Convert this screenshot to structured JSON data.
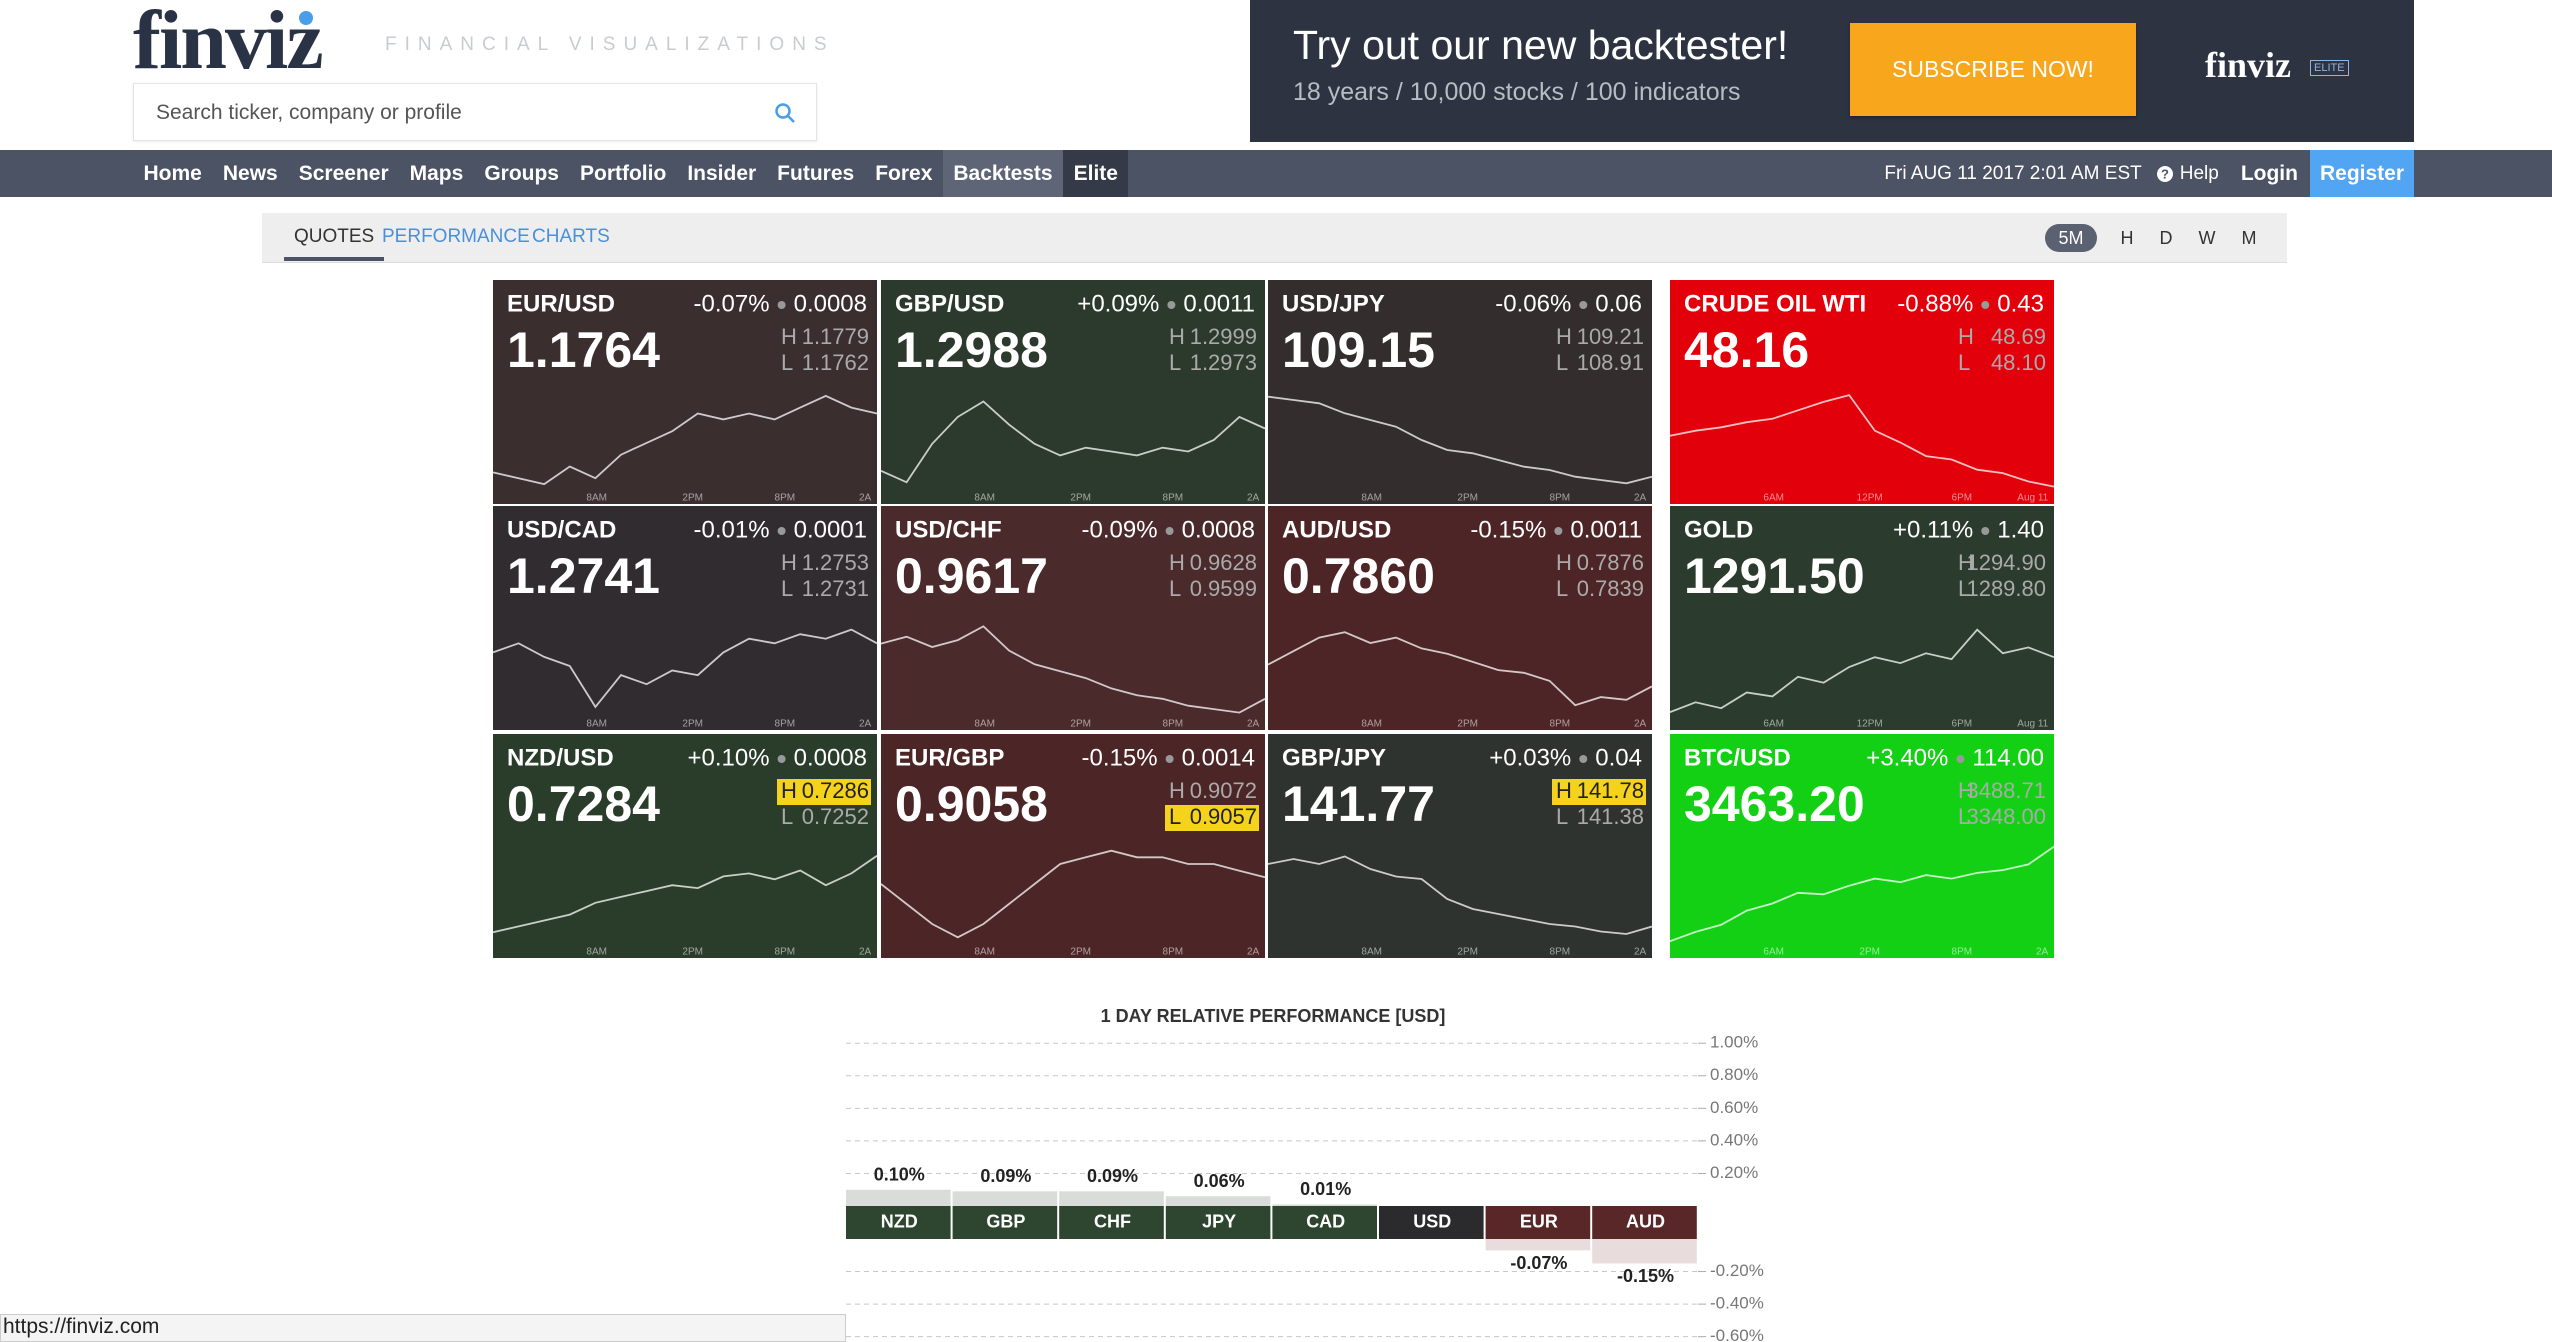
{
  "header": {
    "logo": "finviz",
    "tagline": "FINANCIAL VISUALIZATIONS",
    "search_placeholder": "Search ticker, company or profile",
    "ad": {
      "title": "Try out our new backtester!",
      "subtitle": "18 years / 10,000 stocks / 100 indicators",
      "button": "SUBSCRIBE NOW!",
      "logo": "finviz",
      "badge": "ELITE"
    }
  },
  "nav": {
    "items": [
      "Home",
      "News",
      "Screener",
      "Maps",
      "Groups",
      "Portfolio",
      "Insider",
      "Futures",
      "Forex",
      "Backtests",
      "Elite"
    ],
    "datetime": "Fri AUG 11 2017 2:01 AM EST",
    "help": "Help",
    "login": "Login",
    "register": "Register"
  },
  "tabs": {
    "items": [
      "QUOTES",
      "PERFORMANCE",
      "CHARTS"
    ],
    "timeframes": [
      "5M",
      "H",
      "D",
      "W",
      "M"
    ]
  },
  "tile_labels": {
    "high": "H",
    "low": "L"
  },
  "tiles": [
    {
      "name": "EUR/USD",
      "change_pct": "-0.07%",
      "change": "0.0008",
      "price": "1.1764",
      "high": "1.1779",
      "low": "1.1762",
      "color": "#3b2e2f",
      "x_labels": [
        "8AM",
        "2PM",
        "8PM",
        "2A"
      ],
      "values": [
        1.1765,
        1.1764,
        1.1763,
        1.1766,
        1.1764,
        1.1768,
        1.177,
        1.1772,
        1.1775,
        1.1774,
        1.1775,
        1.1774,
        1.1776,
        1.1778,
        1.1776,
        1.1775
      ]
    },
    {
      "name": "GBP/USD",
      "change_pct": "+0.09%",
      "change": "0.0011",
      "price": "1.2988",
      "high": "1.2999",
      "low": "1.2973",
      "color": "#2c3a2d",
      "x_labels": [
        "8AM",
        "2PM",
        "8PM",
        "2A"
      ],
      "values": [
        1.2978,
        1.2975,
        1.2985,
        1.2992,
        1.2996,
        1.299,
        1.2985,
        1.2982,
        1.2984,
        1.2983,
        1.2982,
        1.2984,
        1.2983,
        1.2986,
        1.2992,
        1.2989
      ]
    },
    {
      "name": "USD/JPY",
      "change_pct": "-0.06%",
      "change": "0.06",
      "price": "109.15",
      "high": "109.21",
      "low": "108.91",
      "color": "#332d2e",
      "x_labels": [
        "8AM",
        "2PM",
        "8PM",
        "2A"
      ],
      "values": [
        109.19,
        109.18,
        109.17,
        109.14,
        109.12,
        109.1,
        109.06,
        109.03,
        109.02,
        109.0,
        108.98,
        108.97,
        108.95,
        108.94,
        108.93,
        108.95
      ]
    },
    {
      "name": "CRUDE OIL WTI",
      "change_pct": "-0.88%",
      "change": "0.43",
      "price": "48.16",
      "high": "48.69",
      "low": "48.10",
      "color": "#e2000b",
      "x_labels": [
        "6AM",
        "12PM",
        "6PM",
        "Aug 11"
      ],
      "values": [
        48.42,
        48.45,
        48.47,
        48.5,
        48.52,
        48.57,
        48.62,
        48.66,
        48.45,
        48.38,
        48.3,
        48.28,
        48.22,
        48.2,
        48.15,
        48.12
      ]
    },
    {
      "name": "USD/CAD",
      "change_pct": "-0.01%",
      "change": "0.0001",
      "price": "1.2741",
      "high": "1.2753",
      "low": "1.2731",
      "color": "#302c2f",
      "x_labels": [
        "8AM",
        "2PM",
        "8PM",
        "2A"
      ],
      "values": [
        1.2745,
        1.2747,
        1.2744,
        1.2742,
        1.2733,
        1.274,
        1.2738,
        1.2741,
        1.274,
        1.2745,
        1.2748,
        1.2747,
        1.2749,
        1.2748,
        1.275,
        1.2747
      ]
    },
    {
      "name": "USD/CHF",
      "change_pct": "-0.09%",
      "change": "0.0008",
      "price": "0.9617",
      "high": "0.9628",
      "low": "0.9599",
      "color": "#4a2a2b",
      "x_labels": [
        "8AM",
        "2PM",
        "8PM",
        "2A"
      ],
      "values": [
        0.962,
        0.9622,
        0.9619,
        0.9621,
        0.9625,
        0.9618,
        0.9614,
        0.9612,
        0.961,
        0.9607,
        0.9605,
        0.9604,
        0.9602,
        0.9601,
        0.96,
        0.9604
      ]
    },
    {
      "name": "AUD/USD",
      "change_pct": "-0.15%",
      "change": "0.0011",
      "price": "0.7860",
      "high": "0.7876",
      "low": "0.7839",
      "color": "#4e2526",
      "x_labels": [
        "8AM",
        "2PM",
        "8PM",
        "2A"
      ],
      "values": [
        0.7858,
        0.7863,
        0.7868,
        0.787,
        0.7866,
        0.7868,
        0.7864,
        0.7862,
        0.7859,
        0.7856,
        0.7855,
        0.7852,
        0.7843,
        0.7846,
        0.7845,
        0.785
      ]
    },
    {
      "name": "GOLD",
      "change_pct": "+0.11%",
      "change": "1.40",
      "price": "1291.50",
      "high": "1294.90",
      "low": "1289.80",
      "color": "#2b3b2d",
      "x_labels": [
        "6AM",
        "12PM",
        "6PM",
        "Aug 11"
      ],
      "values": [
        1290.0,
        1290.5,
        1290.2,
        1291.0,
        1290.8,
        1291.8,
        1291.5,
        1292.3,
        1292.8,
        1292.5,
        1293.0,
        1292.7,
        1294.2,
        1293.0,
        1293.3,
        1292.8
      ]
    },
    {
      "name": "NZD/USD",
      "change_pct": "+0.10%",
      "change": "0.0008",
      "price": "0.7284",
      "high": "0.7286",
      "low": "0.7252",
      "color": "#2a3d2b",
      "highlight": "high",
      "x_labels": [
        "8AM",
        "2PM",
        "8PM",
        "2A"
      ],
      "values": [
        0.7256,
        0.7258,
        0.726,
        0.7262,
        0.7266,
        0.7268,
        0.727,
        0.7272,
        0.7271,
        0.7275,
        0.7276,
        0.7274,
        0.7277,
        0.7272,
        0.7276,
        0.7282
      ]
    },
    {
      "name": "EUR/GBP",
      "change_pct": "-0.15%",
      "change": "0.0014",
      "price": "0.9058",
      "high": "0.9072",
      "low": "0.9057",
      "color": "#4c2627",
      "highlight": "low",
      "x_labels": [
        "8AM",
        "2PM",
        "8PM",
        "2A"
      ],
      "values": [
        0.9066,
        0.9063,
        0.906,
        0.9058,
        0.906,
        0.9063,
        0.9066,
        0.9069,
        0.907,
        0.9071,
        0.907,
        0.907,
        0.9069,
        0.9069,
        0.9068,
        0.9067
      ]
    },
    {
      "name": "GBP/JPY",
      "change_pct": "+0.03%",
      "change": "0.04",
      "price": "141.77",
      "high": "141.78",
      "low": "141.38",
      "color": "#2e332f",
      "highlight": "high",
      "x_labels": [
        "8AM",
        "2PM",
        "8PM",
        "2A"
      ],
      "values": [
        141.7,
        141.72,
        141.7,
        141.73,
        141.68,
        141.65,
        141.64,
        141.56,
        141.52,
        141.5,
        141.48,
        141.46,
        141.45,
        141.43,
        141.42,
        141.45
      ]
    },
    {
      "name": "BTC/USD",
      "change_pct": "+3.40%",
      "change": "114.00",
      "price": "3463.20",
      "high": "3488.71",
      "low": "3348.00",
      "color": "#14d014",
      "x_labels": [
        "6AM",
        "2PM",
        "8PM",
        "2A"
      ],
      "values": [
        3352,
        3365,
        3375,
        3395,
        3405,
        3420,
        3418,
        3430,
        3440,
        3435,
        3445,
        3440,
        3448,
        3452,
        3460,
        3485
      ]
    }
  ],
  "chart_data": {
    "type": "bar",
    "title": "1 DAY RELATIVE PERFORMANCE  [USD]",
    "categories": [
      "NZD",
      "GBP",
      "CHF",
      "JPY",
      "CAD",
      "USD",
      "EUR",
      "AUD"
    ],
    "values": [
      0.1,
      0.09,
      0.09,
      0.06,
      0.01,
      0,
      -0.07,
      -0.15
    ],
    "value_labels": [
      "0.10%",
      "0.09%",
      "0.09%",
      "0.06%",
      "0.01%",
      null,
      "-0.07%",
      "-0.15%"
    ],
    "ylim": [
      -0.6,
      1.0
    ],
    "yticks": [
      {
        "value": 1.0,
        "label": "1.00%"
      },
      {
        "value": 0.8,
        "label": "0.80%"
      },
      {
        "value": 0.6,
        "label": "0.60%"
      },
      {
        "value": 0.4,
        "label": "0.40%"
      },
      {
        "value": 0.2,
        "label": "0.20%"
      },
      {
        "value": -0.2,
        "label": "-0.20%"
      },
      {
        "value": -0.4,
        "label": "-0.40%"
      },
      {
        "value": -0.6,
        "label": "-0.60%"
      }
    ],
    "grid": true
  },
  "status_url": "https://finviz.com"
}
